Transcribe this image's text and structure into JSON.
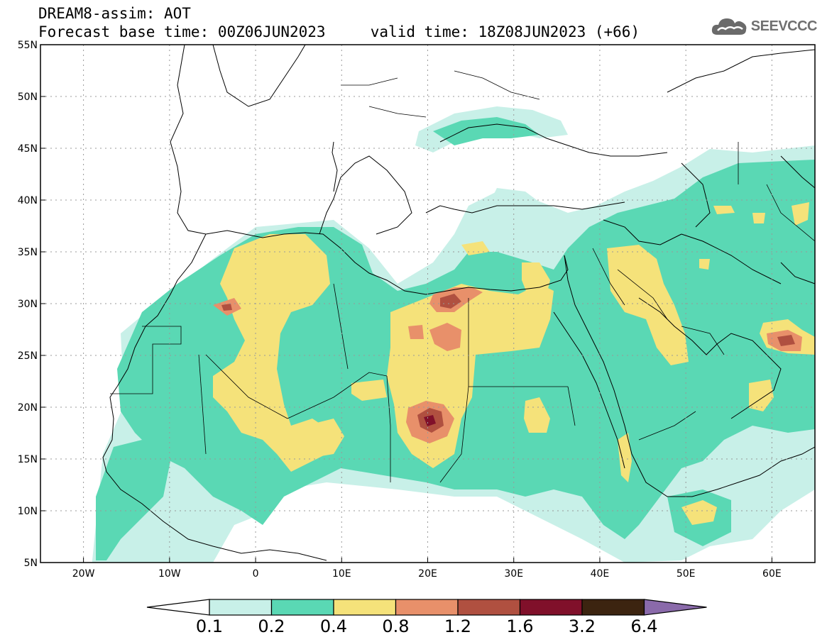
{
  "header": {
    "line1": "DREAM8-assim: AOT",
    "line2": "Forecast base time: 00Z06JUN2023     valid time: 18Z08JUN2023 (+66)"
  },
  "logo": {
    "text": "SEEVCCC",
    "icon": "cloud-icon"
  },
  "map": {
    "lon_range": [
      -25,
      65
    ],
    "lat_range": [
      5,
      55
    ],
    "lon_ticks": [
      {
        "value": -20,
        "label": "20W"
      },
      {
        "value": -10,
        "label": "10W"
      },
      {
        "value": 0,
        "label": "0"
      },
      {
        "value": 10,
        "label": "10E"
      },
      {
        "value": 20,
        "label": "20E"
      },
      {
        "value": 30,
        "label": "30E"
      },
      {
        "value": 40,
        "label": "40E"
      },
      {
        "value": 50,
        "label": "50E"
      },
      {
        "value": 60,
        "label": "60E"
      }
    ],
    "lat_ticks": [
      {
        "value": 5,
        "label": "5N"
      },
      {
        "value": 10,
        "label": "10N"
      },
      {
        "value": 15,
        "label": "15N"
      },
      {
        "value": 20,
        "label": "20N"
      },
      {
        "value": 25,
        "label": "25N"
      },
      {
        "value": 30,
        "label": "30N"
      },
      {
        "value": 35,
        "label": "35N"
      },
      {
        "value": 40,
        "label": "40N"
      },
      {
        "value": 45,
        "label": "45N"
      },
      {
        "value": 50,
        "label": "50N"
      },
      {
        "value": 55,
        "label": "55N"
      }
    ],
    "gridlines": "dotted"
  },
  "colorbar": {
    "levels": [
      "0.1",
      "0.2",
      "0.4",
      "0.8",
      "1.2",
      "1.6",
      "3.2",
      "6.4"
    ],
    "colors": {
      "below": "#ffffff",
      "bins": [
        "#c8f0e8",
        "#5ad8b4",
        "#f5e27a",
        "#e8906a",
        "#b05040",
        "#80102a",
        "#3c2410"
      ],
      "above": "#8a6aaa"
    }
  }
}
